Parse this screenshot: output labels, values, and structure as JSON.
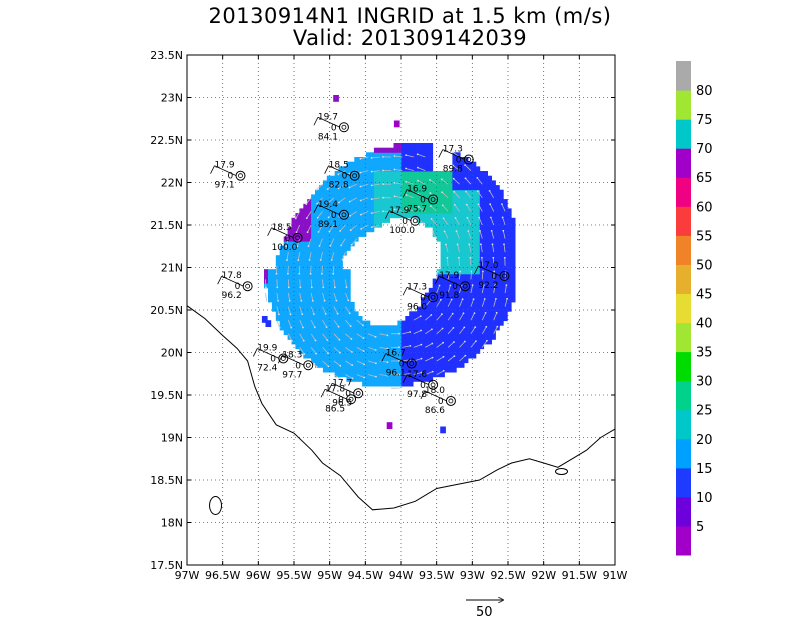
{
  "title": {
    "line1": "20130914N1 INGRID at 1.5 km (m/s)",
    "line2": "Valid: 201309142039"
  },
  "axes": {
    "lon_min": -97,
    "lon_max": -91,
    "lat_min": 17.5,
    "lat_max": 23.5,
    "lon_ticks": [
      {
        "v": -97,
        "label": "97W"
      },
      {
        "v": -96.5,
        "label": "96.5W"
      },
      {
        "v": -96,
        "label": "96W"
      },
      {
        "v": -95.5,
        "label": "95.5W"
      },
      {
        "v": -95,
        "label": "95W"
      },
      {
        "v": -94.5,
        "label": "94.5W"
      },
      {
        "v": -94,
        "label": "94W"
      },
      {
        "v": -93.5,
        "label": "93.5W"
      },
      {
        "v": -93,
        "label": "93W"
      },
      {
        "v": -92.5,
        "label": "92.5W"
      },
      {
        "v": -92,
        "label": "92W"
      },
      {
        "v": -91.5,
        "label": "91.5W"
      },
      {
        "v": -91,
        "label": "91W"
      }
    ],
    "lat_ticks": [
      {
        "v": 17.5,
        "label": "17.5N"
      },
      {
        "v": 18,
        "label": "18N"
      },
      {
        "v": 18.5,
        "label": "18.5N"
      },
      {
        "v": 19,
        "label": "19N"
      },
      {
        "v": 19.5,
        "label": "19.5N"
      },
      {
        "v": 20,
        "label": "20N"
      },
      {
        "v": 20.5,
        "label": "20.5N"
      },
      {
        "v": 21,
        "label": "21N"
      },
      {
        "v": 21.5,
        "label": "21.5N"
      },
      {
        "v": 22,
        "label": "22N"
      },
      {
        "v": 22.5,
        "label": "22.5N"
      },
      {
        "v": 23,
        "label": "23N"
      },
      {
        "v": 23.5,
        "label": "23.5N"
      }
    ],
    "grid": "dotted"
  },
  "colorbar": {
    "labels": [
      "5",
      "10",
      "15",
      "20",
      "25",
      "30",
      "35",
      "40",
      "45",
      "50",
      "55",
      "60",
      "65",
      "70",
      "75",
      "80"
    ],
    "colors": [
      "#a000c8",
      "#6e00dc",
      "#1e3cff",
      "#00a0ff",
      "#00c8c8",
      "#00d28c",
      "#00dc00",
      "#a0e632",
      "#e6dc32",
      "#e6af2d",
      "#f08228",
      "#fa3c3c",
      "#f00082",
      "#a000c8",
      "#00c8c8",
      "#a0e632",
      "#aaaaaa"
    ]
  },
  "reference_vector": {
    "label": "50"
  },
  "stations": [
    {
      "lon": -94.8,
      "lat": 22.65,
      "t": "19.7",
      "p": "84.1"
    },
    {
      "lon": -96.25,
      "lat": 22.08,
      "t": "17.9",
      "p": "97.1"
    },
    {
      "lon": -94.65,
      "lat": 22.08,
      "t": "18.5",
      "p": "82.8"
    },
    {
      "lon": -93.05,
      "lat": 22.27,
      "t": "17.3",
      "p": "89.8"
    },
    {
      "lon": -93.55,
      "lat": 21.8,
      "t": "16.9",
      "p": "75.7"
    },
    {
      "lon": -94.8,
      "lat": 21.62,
      "t": "19.4",
      "p": "89.1"
    },
    {
      "lon": -93.8,
      "lat": 21.55,
      "t": "17.9",
      "p": "100.0"
    },
    {
      "lon": -95.45,
      "lat": 21.35,
      "t": "18.5",
      "p": "100.0"
    },
    {
      "lon": -96.15,
      "lat": 20.78,
      "t": "17.8",
      "p": "96.2"
    },
    {
      "lon": -92.55,
      "lat": 20.9,
      "t": "17.0",
      "p": "92.2"
    },
    {
      "lon": -93.1,
      "lat": 20.78,
      "t": "17.9",
      "p": "91.8"
    },
    {
      "lon": -93.55,
      "lat": 20.65,
      "t": "17.3",
      "p": "96.0"
    },
    {
      "lon": -95.65,
      "lat": 19.93,
      "t": "19.9",
      "p": "72.4"
    },
    {
      "lon": -95.3,
      "lat": 19.85,
      "t": "18.3",
      "p": "97.7"
    },
    {
      "lon": -93.85,
      "lat": 19.87,
      "t": "16.7",
      "p": "96.1"
    },
    {
      "lon": -94.6,
      "lat": 19.52,
      "t": "17.7",
      "p": "96.5"
    },
    {
      "lon": -94.7,
      "lat": 19.45,
      "t": "17.8",
      "p": "86.5"
    },
    {
      "lon": -93.55,
      "lat": 19.62,
      "t": "17.6",
      "p": "97.8"
    },
    {
      "lon": -93.3,
      "lat": 19.43,
      "t": "18.0",
      "p": "86.6"
    }
  ]
}
